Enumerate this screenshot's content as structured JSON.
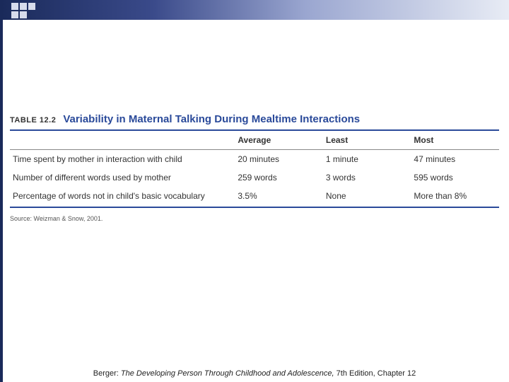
{
  "colors": {
    "accent": "#2a4a9a",
    "border_gradient_start": "#1a2a5a",
    "border_gradient_end": "#e8ecf5",
    "text": "#333333",
    "background": "#ffffff"
  },
  "table": {
    "number": "TABLE 12.2",
    "title": "Variability in Maternal Talking During Mealtime Interactions",
    "columns": [
      "",
      "Average",
      "Least",
      "Most"
    ],
    "rows": [
      [
        "Time spent by mother in interaction with child",
        "20 minutes",
        "1 minute",
        "47 minutes"
      ],
      [
        "Number of different words used by mother",
        "259 words",
        "3 words",
        "595 words"
      ],
      [
        "Percentage of words not in child's basic vocabulary",
        "3.5%",
        "None",
        "More than 8%"
      ]
    ],
    "source": "Source: Weizman & Snow, 2001."
  },
  "footer": {
    "author": "Berger:",
    "book": "The Developing Person Through Childhood and Adolescence,",
    "edition": "7th Edition, Chapter 12"
  }
}
